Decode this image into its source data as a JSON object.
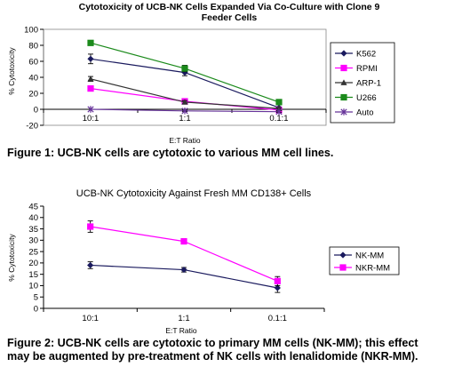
{
  "captions": {
    "figure1": "Figure 1: UCB-NK cells are cytotoxic to various MM cell lines.",
    "figure2_line1": "Figure 2: UCB-NK cells are cytotoxic to primary MM cells (NK-MM); this effect",
    "figure2_line2": "may be augmented by pre-treatment of NK cells with lenalidomide (NKR-MM)."
  },
  "chart_data": [
    {
      "type": "line",
      "title": "Cytotoxicity of UCB-NK Cells Expanded Via Co-Culture with Clone 9 Feeder Cells",
      "title_lines": [
        "Cytotoxicity of UCB-NK Cells Expanded Via Co-Culture with Clone 9",
        "Feeder Cells"
      ],
      "xlabel": "E:T Ratio",
      "ylabel": "% Cytotoxicity",
      "categories": [
        "10:1",
        "1:1",
        "0.1:1"
      ],
      "ylim": [
        -20,
        100
      ],
      "yticks": [
        -20,
        0,
        20,
        40,
        60,
        80,
        100
      ],
      "grid": false,
      "legend": "right",
      "series": [
        {
          "name": "K562",
          "values": [
            63,
            46,
            2
          ],
          "errors": [
            6,
            4,
            1
          ],
          "color": "#1a1a5e",
          "marker": "diamond"
        },
        {
          "name": "RPMI",
          "values": [
            26,
            10,
            -1
          ],
          "errors": [
            1,
            1,
            1
          ],
          "color": "#ff00ff",
          "marker": "square"
        },
        {
          "name": "ARP-1",
          "values": [
            38,
            9,
            1
          ],
          "errors": [
            3,
            2,
            1
          ],
          "color": "#333333",
          "marker": "triangle"
        },
        {
          "name": "U266",
          "values": [
            83,
            51,
            9
          ],
          "errors": [
            2,
            4,
            1
          ],
          "color": "#1b8a1b",
          "marker": "square"
        },
        {
          "name": "Auto",
          "values": [
            0,
            -2,
            -3
          ],
          "errors": [
            0,
            1,
            1
          ],
          "color": "#663399",
          "marker": "star"
        }
      ]
    },
    {
      "type": "line",
      "title": "UCB-NK Cytotoxicity Against Fresh MM CD138+ Cells",
      "xlabel": "E:T Ratio",
      "ylabel": "% Cytotoxicity",
      "categories": [
        "10:1",
        "1:1",
        "0.1:1"
      ],
      "ylim": [
        0,
        45
      ],
      "yticks": [
        0,
        5,
        10,
        15,
        20,
        25,
        30,
        35,
        40,
        45
      ],
      "grid": false,
      "legend": "right",
      "series": [
        {
          "name": "NK-MM",
          "values": [
            19,
            17,
            9
          ],
          "errors": [
            1.5,
            1,
            2
          ],
          "color": "#1a1a5e",
          "marker": "diamond"
        },
        {
          "name": "NKR-MM",
          "values": [
            36,
            29.5,
            12
          ],
          "errors": [
            2.5,
            1,
            2
          ],
          "color": "#ff00ff",
          "marker": "square"
        }
      ]
    }
  ]
}
